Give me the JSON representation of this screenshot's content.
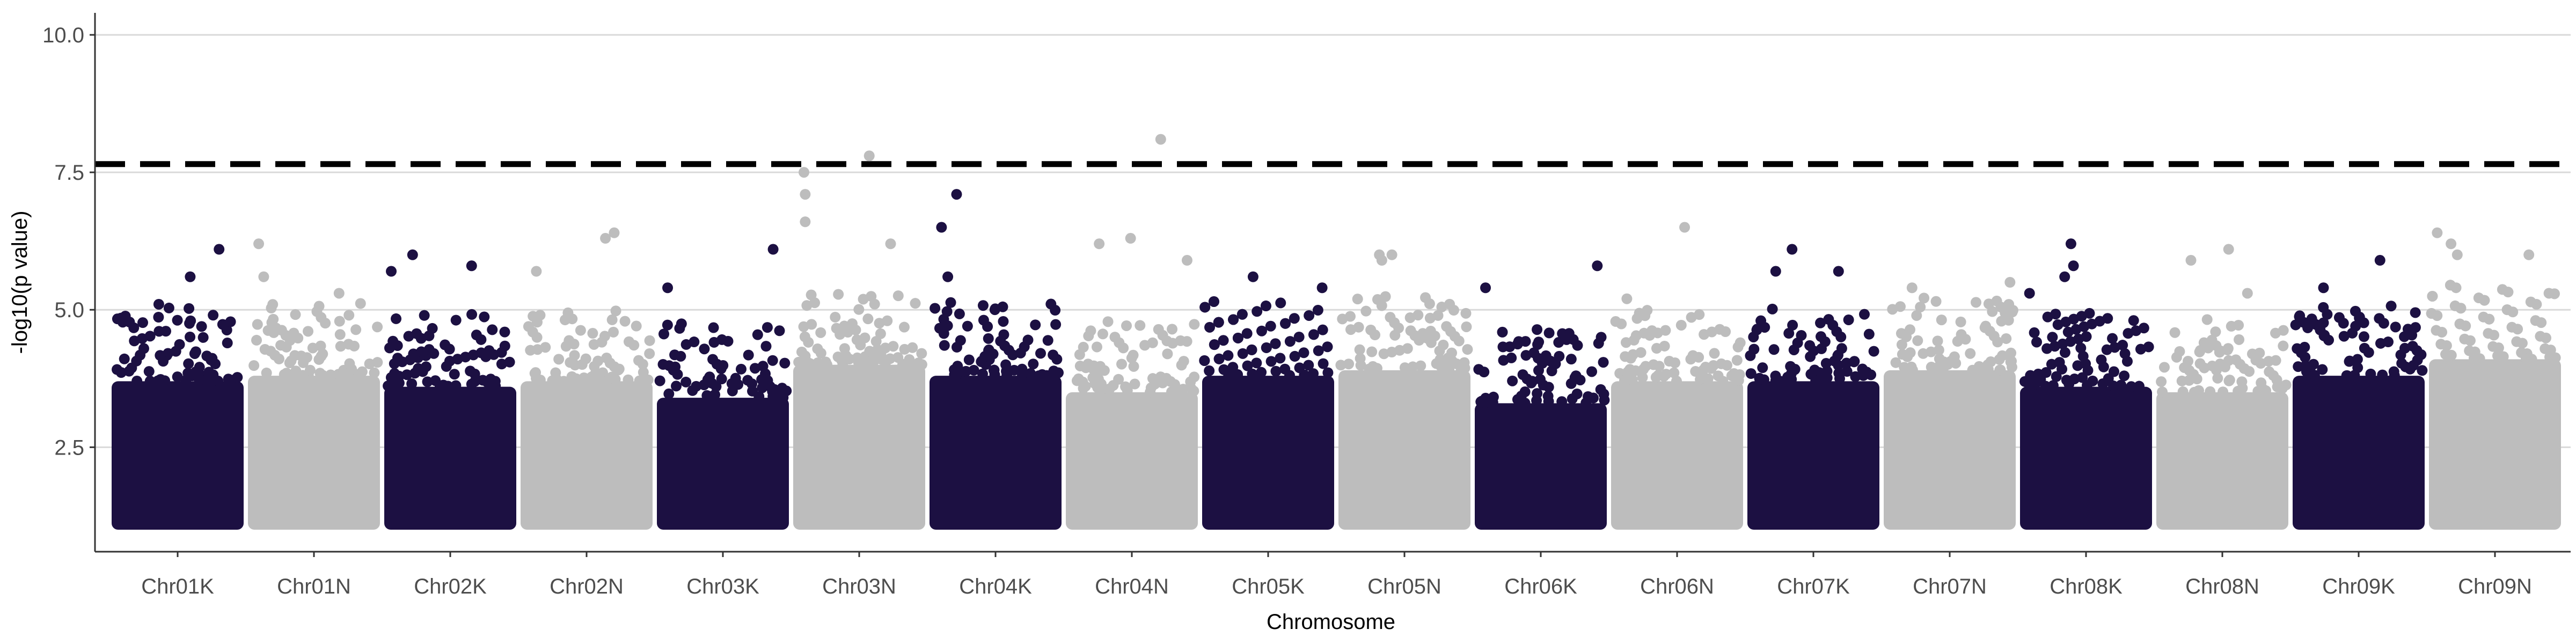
{
  "chart_data": {
    "type": "scatter",
    "title": "",
    "xlabel": "Chromosome",
    "ylabel": "-log10(p value)",
    "ylim": [
      0.6,
      10.4
    ],
    "yticks": [
      2.5,
      5.0,
      7.5,
      10.0
    ],
    "ytick_labels": [
      "2.5",
      "5.0",
      "7.5",
      "10.0"
    ],
    "grid": "horizontal major",
    "legend": "none",
    "threshold": 7.65,
    "threshold_style": "dashed black",
    "colors": {
      "odd": "#1c1042",
      "even": "#bdbdbd"
    },
    "categories": [
      "Chr01K",
      "Chr01N",
      "Chr02K",
      "Chr02N",
      "Chr03K",
      "Chr03N",
      "Chr04K",
      "Chr04N",
      "Chr05K",
      "Chr05N",
      "Chr06K",
      "Chr06N",
      "Chr07K",
      "Chr07N",
      "Chr08K",
      "Chr08N",
      "Chr09K",
      "Chr09N"
    ],
    "base_floor": 1.0,
    "band_tops": [
      3.7,
      3.8,
      3.6,
      3.7,
      3.4,
      4.0,
      3.8,
      3.5,
      3.8,
      3.9,
      3.3,
      3.7,
      3.7,
      3.9,
      3.6,
      3.5,
      3.8,
      4.1
    ],
    "top_points": [
      {
        "chr": "Chr01K",
        "pos": 0.83,
        "p": 6.1
      },
      {
        "chr": "Chr01K",
        "pos": 0.6,
        "p": 5.6
      },
      {
        "chr": "Chr01K",
        "pos": 0.35,
        "p": 5.1
      },
      {
        "chr": "Chr01K",
        "pos": 0.05,
        "p": 4.85
      },
      {
        "chr": "Chr01N",
        "pos": 0.06,
        "p": 6.2
      },
      {
        "chr": "Chr01N",
        "pos": 0.1,
        "p": 5.6
      },
      {
        "chr": "Chr01N",
        "pos": 0.7,
        "p": 5.3
      },
      {
        "chr": "Chr02K",
        "pos": 0.2,
        "p": 6.0
      },
      {
        "chr": "Chr02K",
        "pos": 0.67,
        "p": 5.8
      },
      {
        "chr": "Chr02K",
        "pos": 0.03,
        "p": 5.7
      },
      {
        "chr": "Chr02N",
        "pos": 0.72,
        "p": 6.4
      },
      {
        "chr": "Chr02N",
        "pos": 0.65,
        "p": 6.3
      },
      {
        "chr": "Chr02N",
        "pos": 0.1,
        "p": 5.7
      },
      {
        "chr": "Chr03K",
        "pos": 0.9,
        "p": 6.1
      },
      {
        "chr": "Chr03K",
        "pos": 0.06,
        "p": 5.4
      },
      {
        "chr": "Chr03N",
        "pos": 0.58,
        "p": 7.8
      },
      {
        "chr": "Chr03N",
        "pos": 0.06,
        "p": 7.5
      },
      {
        "chr": "Chr03N",
        "pos": 0.07,
        "p": 7.1
      },
      {
        "chr": "Chr03N",
        "pos": 0.07,
        "p": 6.6
      },
      {
        "chr": "Chr03N",
        "pos": 0.75,
        "p": 6.2
      },
      {
        "chr": "Chr04K",
        "pos": 0.19,
        "p": 7.1
      },
      {
        "chr": "Chr04K",
        "pos": 0.07,
        "p": 6.5
      },
      {
        "chr": "Chr04K",
        "pos": 0.12,
        "p": 5.6
      },
      {
        "chr": "Chr04N",
        "pos": 0.73,
        "p": 8.1
      },
      {
        "chr": "Chr04N",
        "pos": 0.49,
        "p": 6.3
      },
      {
        "chr": "Chr04N",
        "pos": 0.24,
        "p": 6.2
      },
      {
        "chr": "Chr04N",
        "pos": 0.94,
        "p": 5.9
      },
      {
        "chr": "Chr05K",
        "pos": 0.38,
        "p": 5.6
      },
      {
        "chr": "Chr05K",
        "pos": 0.93,
        "p": 5.4
      },
      {
        "chr": "Chr05N",
        "pos": 0.3,
        "p": 6.0
      },
      {
        "chr": "Chr05N",
        "pos": 0.4,
        "p": 6.0
      },
      {
        "chr": "Chr05N",
        "pos": 0.32,
        "p": 5.9
      },
      {
        "chr": "Chr06K",
        "pos": 0.95,
        "p": 5.8
      },
      {
        "chr": "Chr06K",
        "pos": 0.06,
        "p": 5.4
      },
      {
        "chr": "Chr06N",
        "pos": 0.56,
        "p": 6.5
      },
      {
        "chr": "Chr06N",
        "pos": 0.1,
        "p": 5.2
      },
      {
        "chr": "Chr07K",
        "pos": 0.33,
        "p": 6.1
      },
      {
        "chr": "Chr07K",
        "pos": 0.2,
        "p": 5.7
      },
      {
        "chr": "Chr07K",
        "pos": 0.7,
        "p": 5.7
      },
      {
        "chr": "Chr07N",
        "pos": 0.2,
        "p": 5.4
      },
      {
        "chr": "Chr07N",
        "pos": 0.98,
        "p": 5.5
      },
      {
        "chr": "Chr08K",
        "pos": 0.38,
        "p": 6.2
      },
      {
        "chr": "Chr08K",
        "pos": 0.4,
        "p": 5.8
      },
      {
        "chr": "Chr08K",
        "pos": 0.33,
        "p": 5.6
      },
      {
        "chr": "Chr08K",
        "pos": 0.05,
        "p": 5.3
      },
      {
        "chr": "Chr08N",
        "pos": 0.55,
        "p": 6.1
      },
      {
        "chr": "Chr08N",
        "pos": 0.25,
        "p": 5.9
      },
      {
        "chr": "Chr08N",
        "pos": 0.7,
        "p": 5.3
      },
      {
        "chr": "Chr09K",
        "pos": 0.67,
        "p": 5.9
      },
      {
        "chr": "Chr09K",
        "pos": 0.22,
        "p": 5.4
      },
      {
        "chr": "Chr09N",
        "pos": 0.04,
        "p": 6.4
      },
      {
        "chr": "Chr09N",
        "pos": 0.15,
        "p": 6.2
      },
      {
        "chr": "Chr09N",
        "pos": 0.2,
        "p": 6.0
      },
      {
        "chr": "Chr09N",
        "pos": 0.77,
        "p": 6.0
      },
      {
        "chr": "Chr09N",
        "pos": 0.93,
        "p": 5.3
      }
    ]
  }
}
